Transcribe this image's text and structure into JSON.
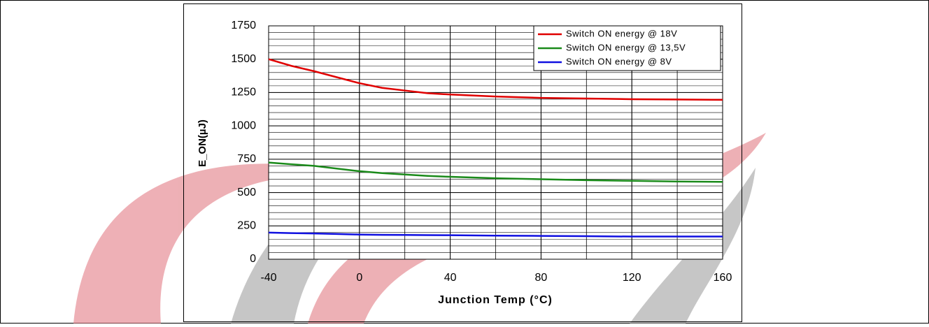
{
  "chart_data": {
    "type": "line",
    "x_label": "Junction Temp (°C)",
    "y_label": "E_ON(µJ)",
    "x": [
      -40,
      -30,
      -20,
      -10,
      0,
      10,
      20,
      30,
      40,
      60,
      80,
      100,
      120,
      140,
      160
    ],
    "series": [
      {
        "name": "Switch ON energy @ 18V",
        "color": "#e00000",
        "values": [
          1500,
          1450,
          1410,
          1365,
          1320,
          1285,
          1265,
          1245,
          1235,
          1220,
          1210,
          1205,
          1200,
          1198,
          1195
        ]
      },
      {
        "name": "Switch ON energy @ 13,5V",
        "color": "#1a8a1a",
        "values": [
          725,
          712,
          700,
          680,
          660,
          646,
          635,
          625,
          618,
          607,
          600,
          593,
          588,
          583,
          580
        ]
      },
      {
        "name": "Switch ON energy @ 8V",
        "color": "#1010e0",
        "values": [
          200,
          196,
          193,
          189,
          185,
          183,
          182,
          181,
          180,
          177,
          175,
          173,
          170,
          170,
          170
        ]
      }
    ],
    "xlim": [
      -40,
      160
    ],
    "xticks": [
      -40,
      0,
      40,
      80,
      120,
      160
    ],
    "ylim": [
      0,
      1750
    ],
    "yticks": [
      0,
      250,
      500,
      750,
      1000,
      1250,
      1500,
      1750
    ],
    "grid": {
      "x_step": 20,
      "y_step": 50
    },
    "legend": "upper right"
  }
}
